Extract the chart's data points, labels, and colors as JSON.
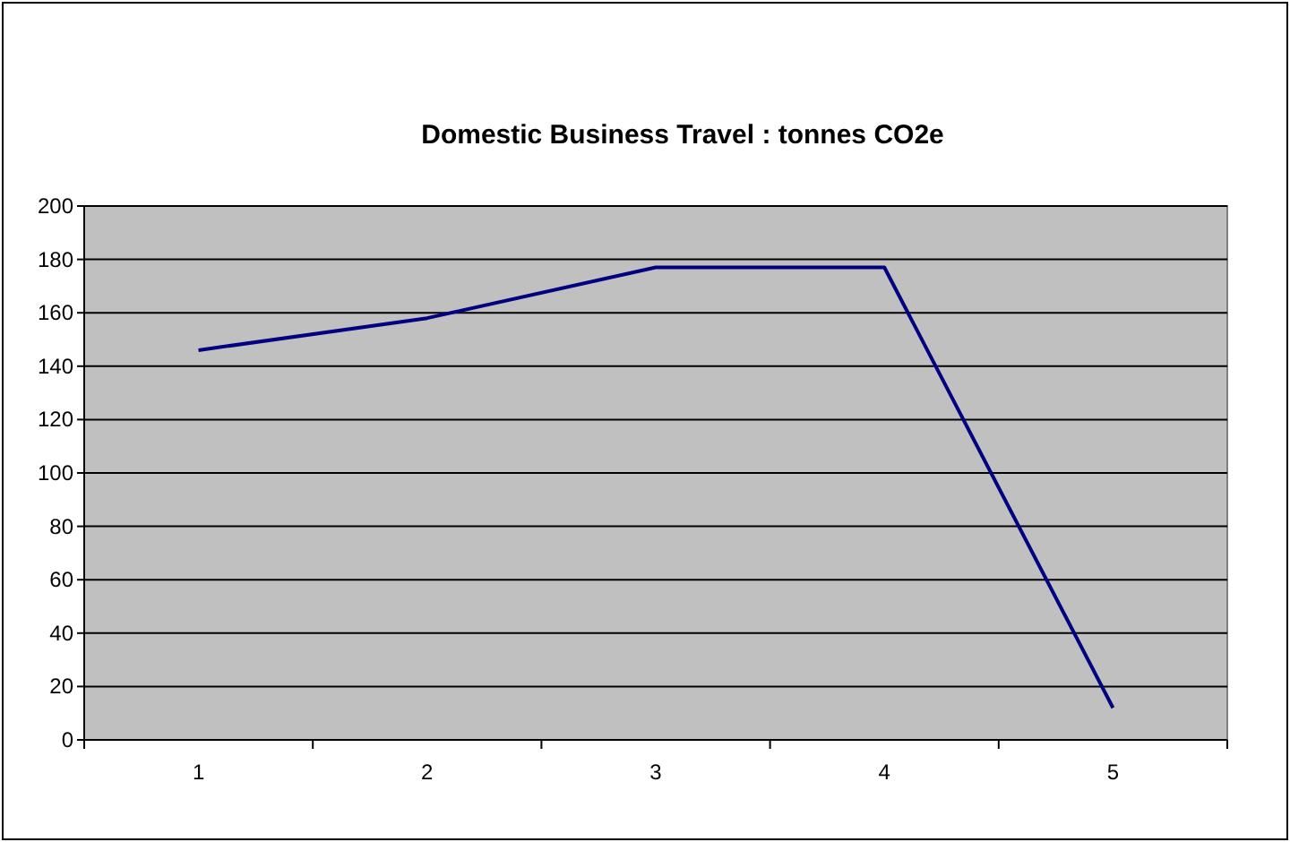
{
  "chart_data": {
    "type": "line",
    "title": "Domestic Business Travel : tonnes CO2e",
    "categories": [
      "1",
      "2",
      "3",
      "4",
      "5"
    ],
    "series": [
      {
        "color": "#000080",
        "values": [
          146,
          158,
          177,
          177,
          12
        ]
      }
    ],
    "ylim": [
      0,
      200
    ],
    "yticks": [
      0,
      20,
      40,
      60,
      80,
      100,
      120,
      140,
      160,
      180,
      200
    ],
    "grid": "y",
    "marker": "none",
    "line_style": "solid"
  }
}
